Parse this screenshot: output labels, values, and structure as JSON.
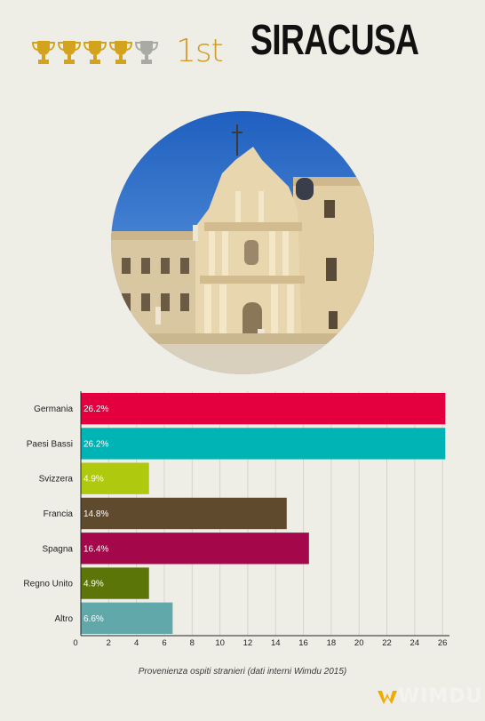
{
  "header": {
    "trophies": [
      "gold",
      "gold",
      "gold",
      "gold",
      "gray"
    ],
    "trophy_gold_color": "#d4a31e",
    "trophy_gray_color": "#a9a9a6",
    "rank": "1st",
    "city": "SIRACUSA"
  },
  "photo": {
    "icon": "cathedral-photo"
  },
  "chart_data": {
    "type": "bar",
    "orientation": "horizontal",
    "categories": [
      "Germania",
      "Paesi Bassi",
      "Svizzera",
      "Francia",
      "Spagna",
      "Regno Unito",
      "Altro"
    ],
    "values": [
      26.2,
      26.2,
      4.9,
      14.8,
      16.4,
      4.9,
      6.6
    ],
    "value_labels": [
      "26.2%",
      "26.2%",
      "4.9%",
      "14.8%",
      "16.4%",
      "4.9%",
      "6.6%"
    ],
    "colors": [
      "#e4003f",
      "#00b4b5",
      "#aec90e",
      "#604a2d",
      "#a5084a",
      "#5c7509",
      "#60a8a9"
    ],
    "xlim": [
      0,
      26.5
    ],
    "xticks": [
      0,
      2,
      4,
      6,
      8,
      10,
      12,
      14,
      16,
      18,
      20,
      22,
      24,
      26
    ],
    "grid": true,
    "legend": "none"
  },
  "caption": "Provenienza ospiti stranieri (dati interni Wimdu 2015)",
  "logo": {
    "text": "WIMDU",
    "icon": "wimdu-logo-icon",
    "accent": "#f2a900"
  }
}
